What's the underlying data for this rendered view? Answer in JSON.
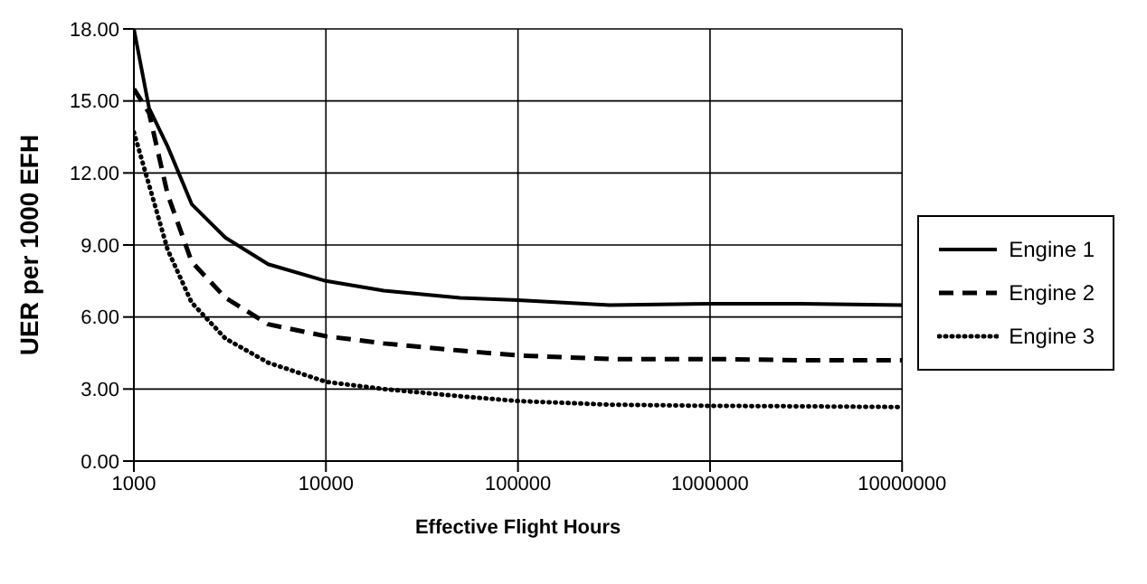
{
  "chart_data": {
    "type": "line",
    "xlabel": "Effective Flight Hours",
    "ylabel": "UER per 1000 EFH",
    "log": "x",
    "xlim": [
      1000,
      10000000
    ],
    "xticks": [
      1000,
      10000,
      100000,
      1000000,
      10000000
    ],
    "ylim": [
      0,
      18
    ],
    "yticks": [
      {
        "value": 0,
        "label": "0.00"
      },
      {
        "value": 3,
        "label": "3.00"
      },
      {
        "value": 6,
        "label": "6.00"
      },
      {
        "value": 9,
        "label": "9.00"
      },
      {
        "value": 12,
        "label": "12.00"
      },
      {
        "value": 15,
        "label": "15.00"
      },
      {
        "value": 18,
        "label": "18.00"
      }
    ],
    "grid": true,
    "legend": "right",
    "marker": "none",
    "x": [
      1000,
      1200,
      1500,
      2000,
      3000,
      5000,
      10000,
      20000,
      50000,
      100000,
      300000,
      1000000,
      3000000,
      10000000
    ],
    "series": [
      {
        "name": "Engine 1",
        "color": "#000000",
        "line_style": "solid",
        "values": [
          18,
          14.7,
          13.1,
          10.7,
          9.3,
          8.2,
          7.5,
          7.1,
          6.8,
          6.7,
          6.5,
          6.55,
          6.55,
          6.5
        ]
      },
      {
        "name": "Engine 2",
        "color": "#000000",
        "line_style": "dashed",
        "values": [
          15.5,
          14.5,
          11.1,
          8.3,
          6.8,
          5.7,
          5.2,
          4.9,
          4.6,
          4.4,
          4.25,
          4.25,
          4.2,
          4.2
        ]
      },
      {
        "name": "Engine 3",
        "color": "#000000",
        "line_style": "dotted",
        "values": [
          13.7,
          11.5,
          8.8,
          6.6,
          5.1,
          4.1,
          3.3,
          3.0,
          2.7,
          2.5,
          2.35,
          2.3,
          2.28,
          2.25
        ]
      }
    ]
  }
}
